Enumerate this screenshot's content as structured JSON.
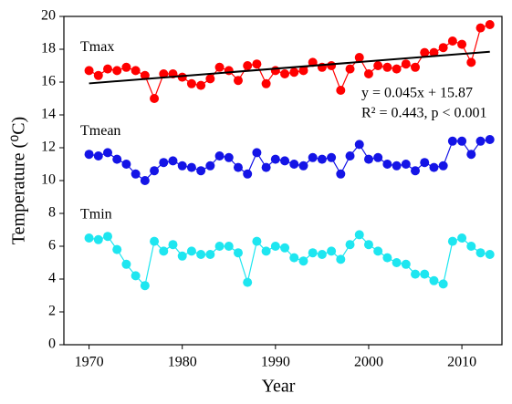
{
  "chart_data": {
    "type": "line",
    "x_label": "Year",
    "y_label": "Temperature (⁰C)",
    "x": [
      1970,
      1971,
      1972,
      1973,
      1974,
      1975,
      1976,
      1977,
      1978,
      1979,
      1980,
      1981,
      1982,
      1983,
      1984,
      1985,
      1986,
      1987,
      1988,
      1989,
      1990,
      1991,
      1992,
      1993,
      1994,
      1995,
      1996,
      1997,
      1998,
      1999,
      2000,
      2001,
      2002,
      2003,
      2004,
      2005,
      2006,
      2007,
      2008,
      2009,
      2010,
      2011,
      2012,
      2013
    ],
    "series": [
      {
        "name": "Tmax",
        "color": "#ff0000",
        "values": [
          16.7,
          16.4,
          16.8,
          16.7,
          16.9,
          16.7,
          16.4,
          15.0,
          16.5,
          16.5,
          16.3,
          15.9,
          15.8,
          16.2,
          16.9,
          16.7,
          16.1,
          17.0,
          17.1,
          15.9,
          16.7,
          16.5,
          16.6,
          16.7,
          17.2,
          16.9,
          17.0,
          15.5,
          16.8,
          17.5,
          16.5,
          17.0,
          16.9,
          16.8,
          17.1,
          16.9,
          17.8,
          17.8,
          18.1,
          18.5,
          18.3,
          17.2,
          19.3,
          19.5
        ]
      },
      {
        "name": "Tmean",
        "color": "#1414e6",
        "values": [
          11.6,
          11.5,
          11.7,
          11.3,
          11.0,
          10.4,
          10.0,
          10.6,
          11.1,
          11.2,
          10.9,
          10.8,
          10.6,
          10.9,
          11.5,
          11.4,
          10.8,
          10.4,
          11.7,
          10.8,
          11.3,
          11.2,
          11.0,
          10.9,
          11.4,
          11.3,
          11.4,
          10.4,
          11.5,
          12.2,
          11.3,
          11.4,
          11.0,
          10.9,
          11.0,
          10.6,
          11.1,
          10.8,
          10.9,
          12.4,
          12.4,
          11.6,
          12.4,
          12.5
        ]
      },
      {
        "name": "Tmin",
        "color": "#1ee6f0",
        "values": [
          6.5,
          6.4,
          6.6,
          5.8,
          4.9,
          4.2,
          3.6,
          6.3,
          5.7,
          6.1,
          5.4,
          5.7,
          5.5,
          5.5,
          6.0,
          6.0,
          5.6,
          3.8,
          6.3,
          5.7,
          6.0,
          5.9,
          5.3,
          5.1,
          5.6,
          5.5,
          5.7,
          5.2,
          6.1,
          6.7,
          6.1,
          5.7,
          5.3,
          5.0,
          4.9,
          4.3,
          4.3,
          3.9,
          3.7,
          6.3,
          6.5,
          6.0,
          5.6,
          5.5
        ]
      }
    ],
    "trend": {
      "color": "#000000",
      "x": [
        1970,
        2013
      ],
      "values": [
        15.92,
        17.85
      ]
    },
    "annotations": [
      "y = 0.045x + 15.87",
      "R² = 0.443, p < 0.001"
    ],
    "xlim": [
      1967.3,
      2014.3
    ],
    "xticks": [
      1970,
      1980,
      1990,
      2000,
      2010
    ],
    "ylim": [
      0,
      20
    ],
    "yticks": [
      0,
      2,
      4,
      6,
      8,
      10,
      12,
      14,
      16,
      18,
      20
    ]
  }
}
